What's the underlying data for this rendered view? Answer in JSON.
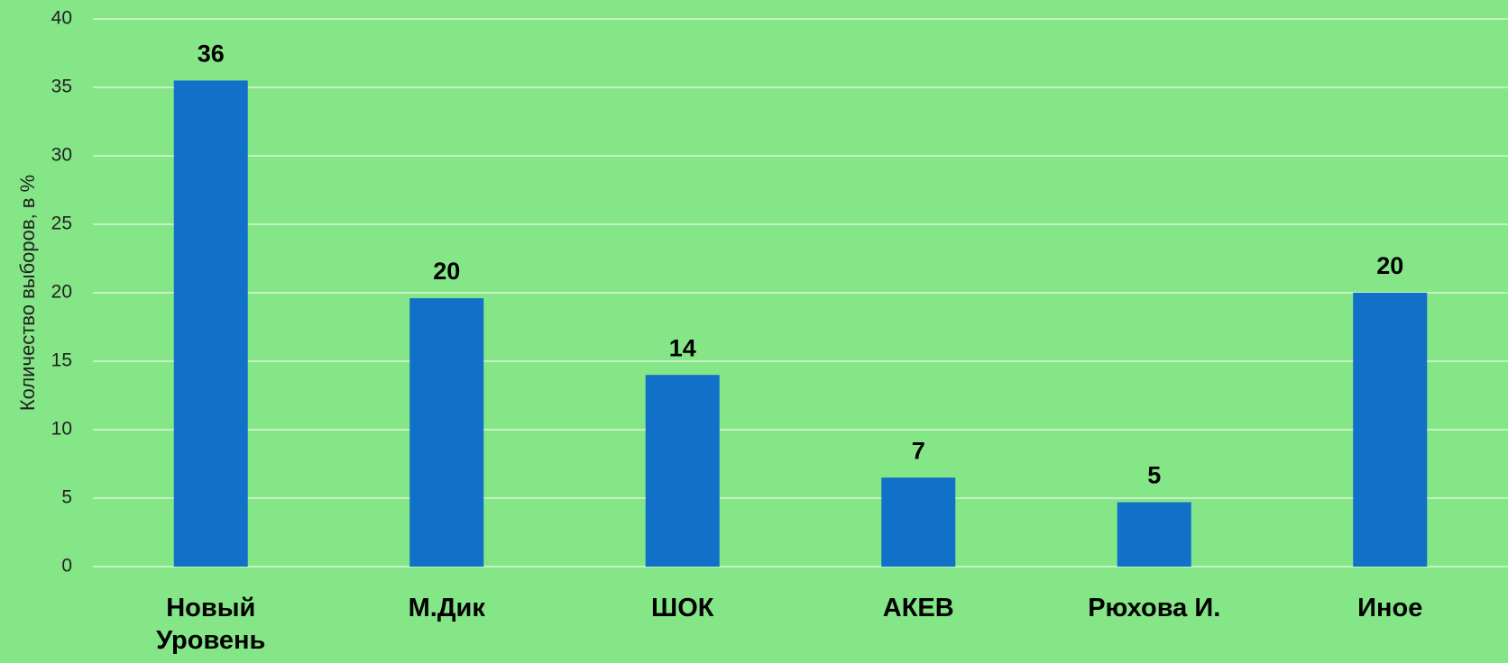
{
  "chart_data": {
    "type": "bar",
    "y_label": "Количество выборов, в %",
    "categories": [
      "Новый Уровень",
      "М.Дик",
      "ШОК",
      "АКЕВ",
      "Рюхова И.",
      "Иное"
    ],
    "values": [
      35.5,
      19.6,
      14,
      6.5,
      4.7,
      20
    ],
    "value_labels": [
      "36",
      "20",
      "14",
      "7",
      "5",
      "20"
    ],
    "color": "#1170c8",
    "ylim": [
      0,
      40
    ],
    "yticks": [
      0,
      5,
      10,
      15,
      20,
      25,
      30,
      35,
      40
    ],
    "grid": true
  }
}
